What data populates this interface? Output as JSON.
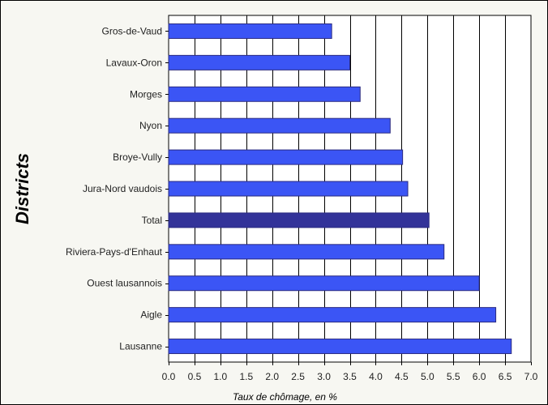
{
  "chart_data": {
    "type": "bar",
    "orientation": "horizontal",
    "categories": [
      "Gros-de-Vaud",
      "Lavaux-Oron",
      "Morges",
      "Nyon",
      "Broye-Vully",
      "Jura-Nord vaudois",
      "Total",
      "Riviera-Pays-d'Enhaut",
      "Ouest lausannois",
      "Aigle",
      "Lausanne"
    ],
    "values": [
      3.15,
      3.5,
      3.7,
      4.28,
      4.52,
      4.62,
      5.03,
      5.32,
      6.0,
      6.32,
      6.62
    ],
    "highlight": "Total",
    "xlabel": "Taux de chômage, en  %",
    "ylabel": "Districts",
    "xlim": [
      0,
      7
    ],
    "xticks": [
      "0.0",
      "0.5",
      "1.0",
      "1.5",
      "2.0",
      "2.5",
      "3.0",
      "3.5",
      "4.0",
      "4.5",
      "5.0",
      "5.5",
      "6.0",
      "6.5",
      "7.0"
    ],
    "grid": "vertical",
    "colors": {
      "bar": "#3b55f5",
      "highlight": "#333399",
      "border": "#2a2a80",
      "plot_bg": "#ffffff",
      "panel_bg": "#f7f7f2"
    }
  }
}
